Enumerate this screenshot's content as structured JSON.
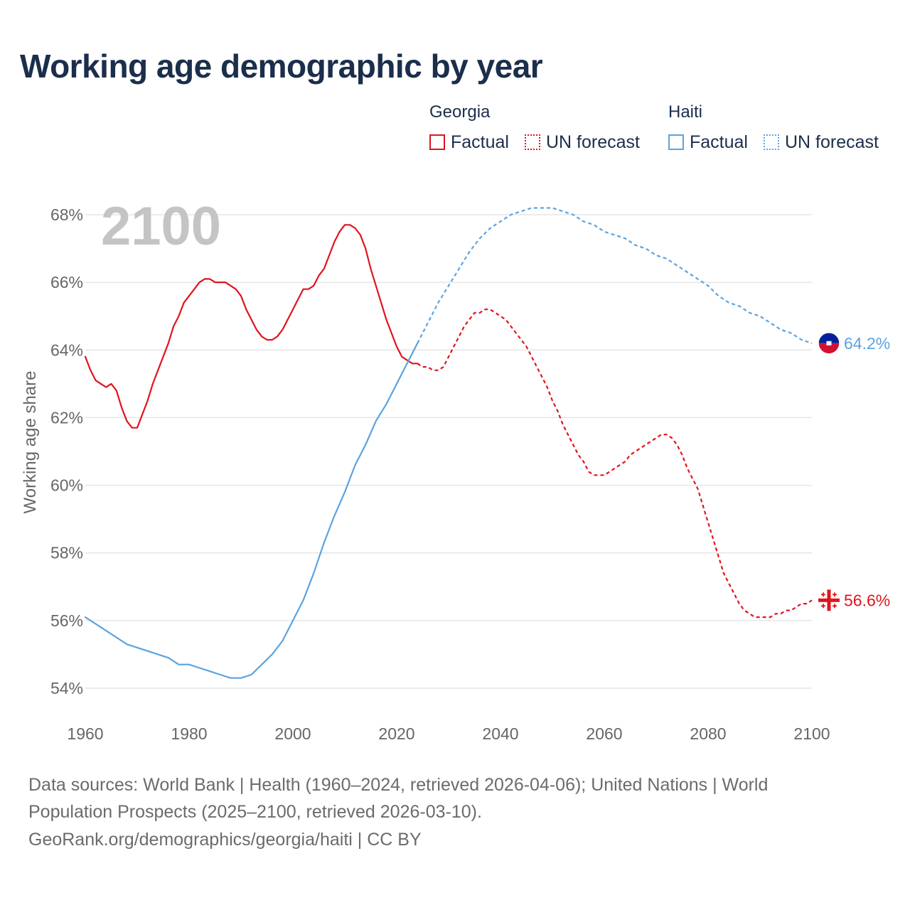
{
  "title": "Working age demographic by year",
  "legend": {
    "groups": [
      {
        "name": "Georgia",
        "factual_label": "Factual",
        "forecast_label": "UN forecast",
        "color": "#e0141e"
      },
      {
        "name": "Haiti",
        "factual_label": "Factual",
        "forecast_label": "UN forecast",
        "color": "#5ba3e0"
      }
    ]
  },
  "footer": {
    "line1": "Data sources: World Bank | Health (1960–2024, retrieved 2026-04-06); United Nations | World",
    "line2": "Population Prospects (2025–2100, retrieved 2026-03-10).",
    "line3": "GeoRank.org/demographics/georgia/haiti | CC BY"
  },
  "chart_data": {
    "type": "line",
    "title": "Working age demographic by year",
    "year_watermark": "2100",
    "xlabel": "",
    "ylabel": "Working age share",
    "xlim": [
      1960,
      2100
    ],
    "ylim": [
      53.5,
      68.5
    ],
    "x_ticks": [
      1960,
      1980,
      2000,
      2020,
      2040,
      2060,
      2080,
      2100
    ],
    "y_ticks": [
      54,
      56,
      58,
      60,
      62,
      64,
      66,
      68
    ],
    "y_tick_suffix": "%",
    "grid": true,
    "legend_position": "top-right",
    "forecast_start_year": 2024,
    "end_labels": [
      {
        "series": "Haiti",
        "text": "64.2%",
        "icon": "haiti-flag-icon"
      },
      {
        "series": "Georgia",
        "text": "56.6%",
        "icon": "georgia-flag-icon"
      }
    ],
    "series": [
      {
        "name": "Georgia",
        "color": "#e0141e",
        "points": [
          [
            1960,
            63.8
          ],
          [
            1961,
            63.4
          ],
          [
            1962,
            63.1
          ],
          [
            1963,
            63.0
          ],
          [
            1964,
            62.9
          ],
          [
            1965,
            63.0
          ],
          [
            1966,
            62.8
          ],
          [
            1967,
            62.3
          ],
          [
            1968,
            61.9
          ],
          [
            1969,
            61.7
          ],
          [
            1970,
            61.7
          ],
          [
            1971,
            62.1
          ],
          [
            1972,
            62.5
          ],
          [
            1973,
            63.0
          ],
          [
            1974,
            63.4
          ],
          [
            1975,
            63.8
          ],
          [
            1976,
            64.2
          ],
          [
            1977,
            64.7
          ],
          [
            1978,
            65.0
          ],
          [
            1979,
            65.4
          ],
          [
            1980,
            65.6
          ],
          [
            1981,
            65.8
          ],
          [
            1982,
            66.0
          ],
          [
            1983,
            66.1
          ],
          [
            1984,
            66.1
          ],
          [
            1985,
            66.0
          ],
          [
            1986,
            66.0
          ],
          [
            1987,
            66.0
          ],
          [
            1988,
            65.9
          ],
          [
            1989,
            65.8
          ],
          [
            1990,
            65.6
          ],
          [
            1991,
            65.2
          ],
          [
            1992,
            64.9
          ],
          [
            1993,
            64.6
          ],
          [
            1994,
            64.4
          ],
          [
            1995,
            64.3
          ],
          [
            1996,
            64.3
          ],
          [
            1997,
            64.4
          ],
          [
            1998,
            64.6
          ],
          [
            1999,
            64.9
          ],
          [
            2000,
            65.2
          ],
          [
            2001,
            65.5
          ],
          [
            2002,
            65.8
          ],
          [
            2003,
            65.8
          ],
          [
            2004,
            65.9
          ],
          [
            2005,
            66.2
          ],
          [
            2006,
            66.4
          ],
          [
            2007,
            66.8
          ],
          [
            2008,
            67.2
          ],
          [
            2009,
            67.5
          ],
          [
            2010,
            67.7
          ],
          [
            2011,
            67.7
          ],
          [
            2012,
            67.6
          ],
          [
            2013,
            67.4
          ],
          [
            2014,
            67.0
          ],
          [
            2015,
            66.4
          ],
          [
            2016,
            65.9
          ],
          [
            2017,
            65.4
          ],
          [
            2018,
            64.9
          ],
          [
            2019,
            64.5
          ],
          [
            2020,
            64.1
          ],
          [
            2021,
            63.8
          ],
          [
            2022,
            63.7
          ],
          [
            2023,
            63.6
          ],
          [
            2024,
            63.6
          ],
          [
            2025,
            63.5
          ],
          [
            2026,
            63.5
          ],
          [
            2027,
            63.4
          ],
          [
            2028,
            63.4
          ],
          [
            2029,
            63.5
          ],
          [
            2030,
            63.8
          ],
          [
            2031,
            64.1
          ],
          [
            2032,
            64.4
          ],
          [
            2033,
            64.7
          ],
          [
            2034,
            64.9
          ],
          [
            2035,
            65.1
          ],
          [
            2036,
            65.1
          ],
          [
            2037,
            65.2
          ],
          [
            2038,
            65.2
          ],
          [
            2039,
            65.1
          ],
          [
            2040,
            65.0
          ],
          [
            2041,
            64.9
          ],
          [
            2042,
            64.7
          ],
          [
            2043,
            64.5
          ],
          [
            2044,
            64.3
          ],
          [
            2045,
            64.1
          ],
          [
            2046,
            63.8
          ],
          [
            2047,
            63.5
          ],
          [
            2048,
            63.2
          ],
          [
            2049,
            62.9
          ],
          [
            2050,
            62.5
          ],
          [
            2051,
            62.2
          ],
          [
            2052,
            61.8
          ],
          [
            2053,
            61.5
          ],
          [
            2054,
            61.2
          ],
          [
            2055,
            60.9
          ],
          [
            2056,
            60.7
          ],
          [
            2057,
            60.4
          ],
          [
            2058,
            60.3
          ],
          [
            2059,
            60.3
          ],
          [
            2060,
            60.3
          ],
          [
            2061,
            60.4
          ],
          [
            2062,
            60.5
          ],
          [
            2063,
            60.6
          ],
          [
            2064,
            60.7
          ],
          [
            2065,
            60.9
          ],
          [
            2066,
            61.0
          ],
          [
            2067,
            61.1
          ],
          [
            2068,
            61.2
          ],
          [
            2069,
            61.3
          ],
          [
            2070,
            61.4
          ],
          [
            2071,
            61.5
          ],
          [
            2072,
            61.5
          ],
          [
            2073,
            61.4
          ],
          [
            2074,
            61.2
          ],
          [
            2075,
            60.9
          ],
          [
            2076,
            60.5
          ],
          [
            2077,
            60.2
          ],
          [
            2078,
            59.9
          ],
          [
            2079,
            59.4
          ],
          [
            2080,
            58.9
          ],
          [
            2081,
            58.4
          ],
          [
            2082,
            57.9
          ],
          [
            2083,
            57.4
          ],
          [
            2084,
            57.1
          ],
          [
            2085,
            56.8
          ],
          [
            2086,
            56.5
          ],
          [
            2087,
            56.3
          ],
          [
            2088,
            56.2
          ],
          [
            2089,
            56.1
          ],
          [
            2090,
            56.1
          ],
          [
            2091,
            56.1
          ],
          [
            2092,
            56.1
          ],
          [
            2093,
            56.2
          ],
          [
            2094,
            56.2
          ],
          [
            2095,
            56.3
          ],
          [
            2096,
            56.3
          ],
          [
            2097,
            56.4
          ],
          [
            2098,
            56.5
          ],
          [
            2099,
            56.5
          ],
          [
            2100,
            56.6
          ]
        ]
      },
      {
        "name": "Haiti",
        "color": "#5ba3e0",
        "points": [
          [
            1960,
            56.1
          ],
          [
            1962,
            55.9
          ],
          [
            1964,
            55.7
          ],
          [
            1966,
            55.5
          ],
          [
            1968,
            55.3
          ],
          [
            1970,
            55.2
          ],
          [
            1972,
            55.1
          ],
          [
            1974,
            55.0
          ],
          [
            1976,
            54.9
          ],
          [
            1978,
            54.7
          ],
          [
            1980,
            54.7
          ],
          [
            1982,
            54.6
          ],
          [
            1984,
            54.5
          ],
          [
            1986,
            54.4
          ],
          [
            1988,
            54.3
          ],
          [
            1990,
            54.3
          ],
          [
            1992,
            54.4
          ],
          [
            1994,
            54.7
          ],
          [
            1996,
            55.0
          ],
          [
            1998,
            55.4
          ],
          [
            2000,
            56.0
          ],
          [
            2002,
            56.6
          ],
          [
            2004,
            57.4
          ],
          [
            2006,
            58.3
          ],
          [
            2008,
            59.1
          ],
          [
            2010,
            59.8
          ],
          [
            2012,
            60.6
          ],
          [
            2014,
            61.2
          ],
          [
            2016,
            61.9
          ],
          [
            2018,
            62.4
          ],
          [
            2020,
            63.0
          ],
          [
            2022,
            63.6
          ],
          [
            2024,
            64.2
          ],
          [
            2026,
            64.8
          ],
          [
            2028,
            65.4
          ],
          [
            2030,
            65.9
          ],
          [
            2032,
            66.4
          ],
          [
            2034,
            66.9
          ],
          [
            2036,
            67.3
          ],
          [
            2038,
            67.6
          ],
          [
            2040,
            67.8
          ],
          [
            2042,
            68.0
          ],
          [
            2044,
            68.1
          ],
          [
            2046,
            68.2
          ],
          [
            2048,
            68.2
          ],
          [
            2050,
            68.2
          ],
          [
            2052,
            68.1
          ],
          [
            2054,
            68.0
          ],
          [
            2056,
            67.8
          ],
          [
            2058,
            67.7
          ],
          [
            2060,
            67.5
          ],
          [
            2062,
            67.4
          ],
          [
            2064,
            67.3
          ],
          [
            2066,
            67.1
          ],
          [
            2068,
            67.0
          ],
          [
            2070,
            66.8
          ],
          [
            2072,
            66.7
          ],
          [
            2074,
            66.5
          ],
          [
            2076,
            66.3
          ],
          [
            2078,
            66.1
          ],
          [
            2080,
            65.9
          ],
          [
            2082,
            65.6
          ],
          [
            2084,
            65.4
          ],
          [
            2086,
            65.3
          ],
          [
            2088,
            65.1
          ],
          [
            2090,
            65.0
          ],
          [
            2092,
            64.8
          ],
          [
            2094,
            64.6
          ],
          [
            2096,
            64.5
          ],
          [
            2098,
            64.3
          ],
          [
            2100,
            64.2
          ]
        ]
      }
    ]
  }
}
